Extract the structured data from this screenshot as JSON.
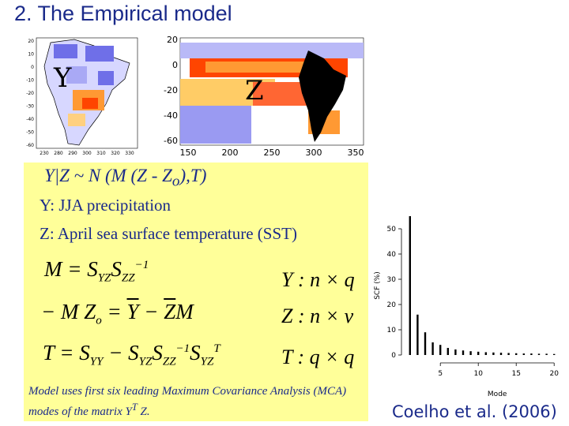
{
  "slide": {
    "title": "2. The Empirical model",
    "citation": "Coelho et al. (2006)"
  },
  "maps": {
    "y_map": {
      "label": "Y",
      "y_ticks": [
        "20",
        "10",
        "0",
        "-10",
        "-20",
        "-30",
        "-40",
        "-50",
        "-60"
      ],
      "x_ticks": [
        "230",
        "280",
        "290",
        "300",
        "310",
        "320",
        "330"
      ]
    },
    "z_map": {
      "label": "Z",
      "y_ticks": [
        "20",
        "0",
        "-20",
        "-40",
        "-60"
      ],
      "x_ticks": [
        "150",
        "200",
        "250",
        "300",
        "350"
      ]
    }
  },
  "model": {
    "distribution_prefix": "Y|Z  ~  N (M (Z - Z",
    "distribution_sub": "o",
    "distribution_suffix": "),T)",
    "y_definition": "Y: JJA precipitation",
    "z_definition": "Z: April sea surface temperature (SST)",
    "dim_y": "Y : n × q",
    "dim_z": "Z : n × v",
    "dim_t": "T : q × q",
    "note_text": "Model uses first six leading Maximum Covariance Analysis (MCA) modes of the matrix Y",
    "note_sup": "T",
    "note_end": " Z."
  },
  "colors": {
    "title": "#1a2a8a",
    "box_background": "#ffff99",
    "warm": "#ff4500",
    "cool": "#6f6fe8"
  },
  "chart_data": {
    "type": "bar",
    "x": [
      1,
      2,
      3,
      4,
      5,
      6,
      7,
      8,
      9,
      10,
      11,
      12,
      13,
      14,
      15,
      16,
      17,
      18,
      19,
      20
    ],
    "values": [
      55,
      16,
      9,
      5,
      4,
      2.8,
      2.2,
      1.8,
      1.5,
      1.3,
      1.1,
      1.0,
      0.9,
      0.8,
      0.7,
      0.6,
      0.6,
      0.5,
      0.5,
      0.4
    ],
    "xlabel": "Mode",
    "ylabel": "SCF (%)",
    "yticks": [
      0,
      10,
      20,
      30,
      40,
      50
    ],
    "xticks": [
      5,
      10,
      15,
      20
    ],
    "xlim": [
      0.5,
      20.5
    ],
    "ylim": [
      0,
      55
    ]
  }
}
